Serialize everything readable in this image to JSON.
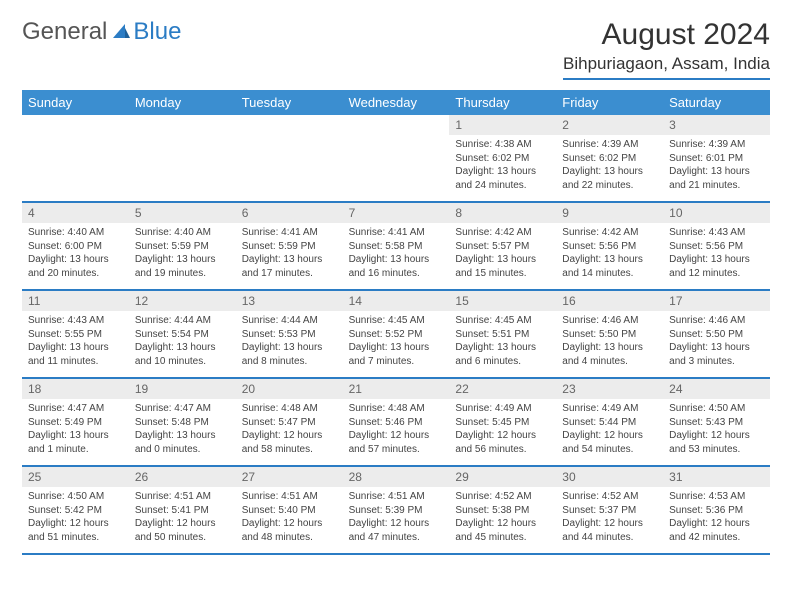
{
  "brand": {
    "part1": "General",
    "part2": "Blue"
  },
  "title": "August 2024",
  "location": "Bihpuriagaon, Assam, India",
  "colors": {
    "header_bg": "#3b8ed0",
    "accent": "#2b7cc4",
    "daynum_bg": "#ececec",
    "text": "#333333",
    "body_text": "#444444"
  },
  "typography": {
    "title_fontsize": 30,
    "location_fontsize": 17,
    "head_fontsize": 13,
    "daynum_fontsize": 12,
    "body_fontsize": 10
  },
  "weekdays": [
    "Sunday",
    "Monday",
    "Tuesday",
    "Wednesday",
    "Thursday",
    "Friday",
    "Saturday"
  ],
  "weeks": [
    [
      {
        "n": "",
        "sr": "",
        "ss": "",
        "dl": ""
      },
      {
        "n": "",
        "sr": "",
        "ss": "",
        "dl": ""
      },
      {
        "n": "",
        "sr": "",
        "ss": "",
        "dl": ""
      },
      {
        "n": "",
        "sr": "",
        "ss": "",
        "dl": ""
      },
      {
        "n": "1",
        "sr": "Sunrise: 4:38 AM",
        "ss": "Sunset: 6:02 PM",
        "dl": "Daylight: 13 hours and 24 minutes."
      },
      {
        "n": "2",
        "sr": "Sunrise: 4:39 AM",
        "ss": "Sunset: 6:02 PM",
        "dl": "Daylight: 13 hours and 22 minutes."
      },
      {
        "n": "3",
        "sr": "Sunrise: 4:39 AM",
        "ss": "Sunset: 6:01 PM",
        "dl": "Daylight: 13 hours and 21 minutes."
      }
    ],
    [
      {
        "n": "4",
        "sr": "Sunrise: 4:40 AM",
        "ss": "Sunset: 6:00 PM",
        "dl": "Daylight: 13 hours and 20 minutes."
      },
      {
        "n": "5",
        "sr": "Sunrise: 4:40 AM",
        "ss": "Sunset: 5:59 PM",
        "dl": "Daylight: 13 hours and 19 minutes."
      },
      {
        "n": "6",
        "sr": "Sunrise: 4:41 AM",
        "ss": "Sunset: 5:59 PM",
        "dl": "Daylight: 13 hours and 17 minutes."
      },
      {
        "n": "7",
        "sr": "Sunrise: 4:41 AM",
        "ss": "Sunset: 5:58 PM",
        "dl": "Daylight: 13 hours and 16 minutes."
      },
      {
        "n": "8",
        "sr": "Sunrise: 4:42 AM",
        "ss": "Sunset: 5:57 PM",
        "dl": "Daylight: 13 hours and 15 minutes."
      },
      {
        "n": "9",
        "sr": "Sunrise: 4:42 AM",
        "ss": "Sunset: 5:56 PM",
        "dl": "Daylight: 13 hours and 14 minutes."
      },
      {
        "n": "10",
        "sr": "Sunrise: 4:43 AM",
        "ss": "Sunset: 5:56 PM",
        "dl": "Daylight: 13 hours and 12 minutes."
      }
    ],
    [
      {
        "n": "11",
        "sr": "Sunrise: 4:43 AM",
        "ss": "Sunset: 5:55 PM",
        "dl": "Daylight: 13 hours and 11 minutes."
      },
      {
        "n": "12",
        "sr": "Sunrise: 4:44 AM",
        "ss": "Sunset: 5:54 PM",
        "dl": "Daylight: 13 hours and 10 minutes."
      },
      {
        "n": "13",
        "sr": "Sunrise: 4:44 AM",
        "ss": "Sunset: 5:53 PM",
        "dl": "Daylight: 13 hours and 8 minutes."
      },
      {
        "n": "14",
        "sr": "Sunrise: 4:45 AM",
        "ss": "Sunset: 5:52 PM",
        "dl": "Daylight: 13 hours and 7 minutes."
      },
      {
        "n": "15",
        "sr": "Sunrise: 4:45 AM",
        "ss": "Sunset: 5:51 PM",
        "dl": "Daylight: 13 hours and 6 minutes."
      },
      {
        "n": "16",
        "sr": "Sunrise: 4:46 AM",
        "ss": "Sunset: 5:50 PM",
        "dl": "Daylight: 13 hours and 4 minutes."
      },
      {
        "n": "17",
        "sr": "Sunrise: 4:46 AM",
        "ss": "Sunset: 5:50 PM",
        "dl": "Daylight: 13 hours and 3 minutes."
      }
    ],
    [
      {
        "n": "18",
        "sr": "Sunrise: 4:47 AM",
        "ss": "Sunset: 5:49 PM",
        "dl": "Daylight: 13 hours and 1 minute."
      },
      {
        "n": "19",
        "sr": "Sunrise: 4:47 AM",
        "ss": "Sunset: 5:48 PM",
        "dl": "Daylight: 13 hours and 0 minutes."
      },
      {
        "n": "20",
        "sr": "Sunrise: 4:48 AM",
        "ss": "Sunset: 5:47 PM",
        "dl": "Daylight: 12 hours and 58 minutes."
      },
      {
        "n": "21",
        "sr": "Sunrise: 4:48 AM",
        "ss": "Sunset: 5:46 PM",
        "dl": "Daylight: 12 hours and 57 minutes."
      },
      {
        "n": "22",
        "sr": "Sunrise: 4:49 AM",
        "ss": "Sunset: 5:45 PM",
        "dl": "Daylight: 12 hours and 56 minutes."
      },
      {
        "n": "23",
        "sr": "Sunrise: 4:49 AM",
        "ss": "Sunset: 5:44 PM",
        "dl": "Daylight: 12 hours and 54 minutes."
      },
      {
        "n": "24",
        "sr": "Sunrise: 4:50 AM",
        "ss": "Sunset: 5:43 PM",
        "dl": "Daylight: 12 hours and 53 minutes."
      }
    ],
    [
      {
        "n": "25",
        "sr": "Sunrise: 4:50 AM",
        "ss": "Sunset: 5:42 PM",
        "dl": "Daylight: 12 hours and 51 minutes."
      },
      {
        "n": "26",
        "sr": "Sunrise: 4:51 AM",
        "ss": "Sunset: 5:41 PM",
        "dl": "Daylight: 12 hours and 50 minutes."
      },
      {
        "n": "27",
        "sr": "Sunrise: 4:51 AM",
        "ss": "Sunset: 5:40 PM",
        "dl": "Daylight: 12 hours and 48 minutes."
      },
      {
        "n": "28",
        "sr": "Sunrise: 4:51 AM",
        "ss": "Sunset: 5:39 PM",
        "dl": "Daylight: 12 hours and 47 minutes."
      },
      {
        "n": "29",
        "sr": "Sunrise: 4:52 AM",
        "ss": "Sunset: 5:38 PM",
        "dl": "Daylight: 12 hours and 45 minutes."
      },
      {
        "n": "30",
        "sr": "Sunrise: 4:52 AM",
        "ss": "Sunset: 5:37 PM",
        "dl": "Daylight: 12 hours and 44 minutes."
      },
      {
        "n": "31",
        "sr": "Sunrise: 4:53 AM",
        "ss": "Sunset: 5:36 PM",
        "dl": "Daylight: 12 hours and 42 minutes."
      }
    ]
  ]
}
